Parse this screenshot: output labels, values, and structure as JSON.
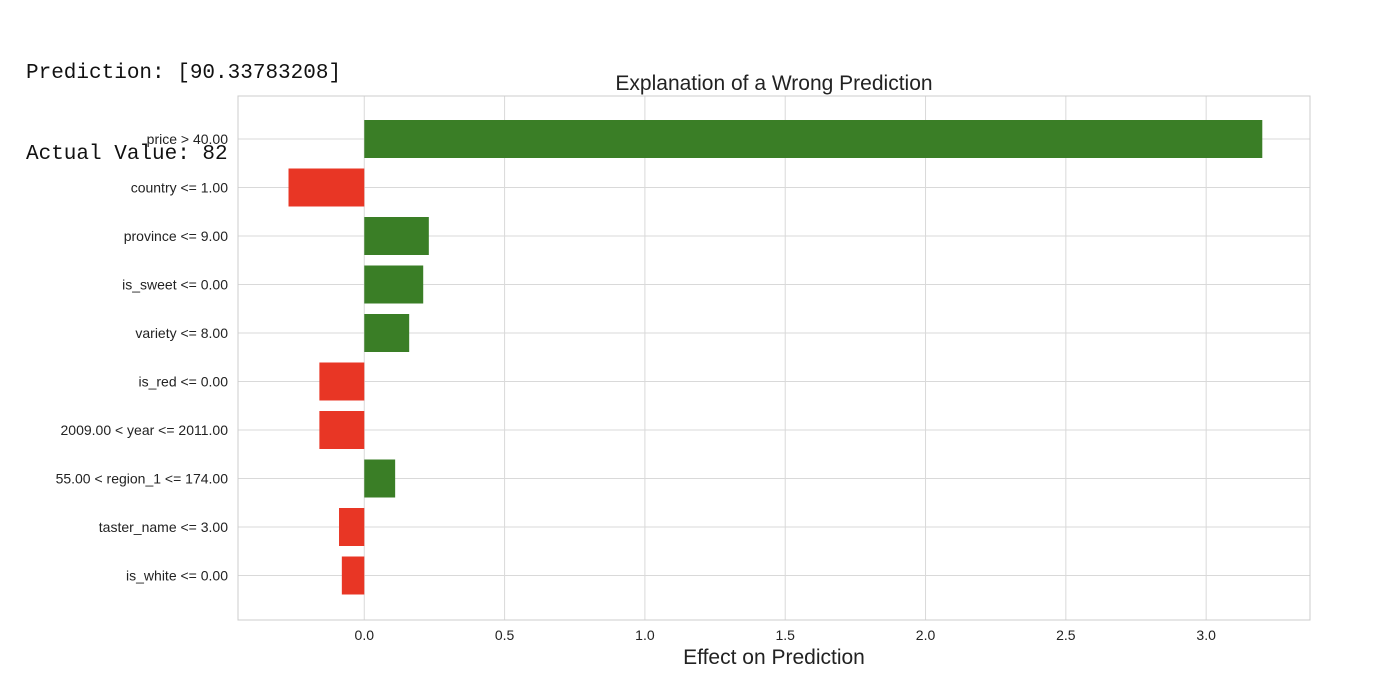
{
  "console": {
    "prediction_line": "Prediction: [90.33783208]",
    "actual_line": "Actual Value: 82"
  },
  "chart_data": {
    "type": "bar",
    "orientation": "horizontal",
    "title": "Explanation of a Wrong Prediction",
    "xlabel": "Effect on Prediction",
    "ylabel": "",
    "categories": [
      "price > 40.00",
      "country <= 1.00",
      "province <= 9.00",
      "is_sweet <= 0.00",
      "variety <= 8.00",
      "is_red <= 0.00",
      "2009.00 < year <= 2011.00",
      "55.00 < region_1 <= 174.00",
      "taster_name <= 3.00",
      "is_white <= 0.00"
    ],
    "values": [
      3.2,
      -0.27,
      0.23,
      0.21,
      0.16,
      -0.16,
      -0.16,
      0.11,
      -0.09,
      -0.08
    ],
    "xlim": [
      -0.45,
      3.37
    ],
    "xticks": [
      "0.0",
      "0.5",
      "1.0",
      "1.5",
      "2.0",
      "2.5",
      "3.0"
    ],
    "grid": true,
    "colors": {
      "positive": "#3a7e26",
      "negative": "#e83625",
      "grid": "#d9d9d9",
      "frame": "#cccccc"
    }
  }
}
